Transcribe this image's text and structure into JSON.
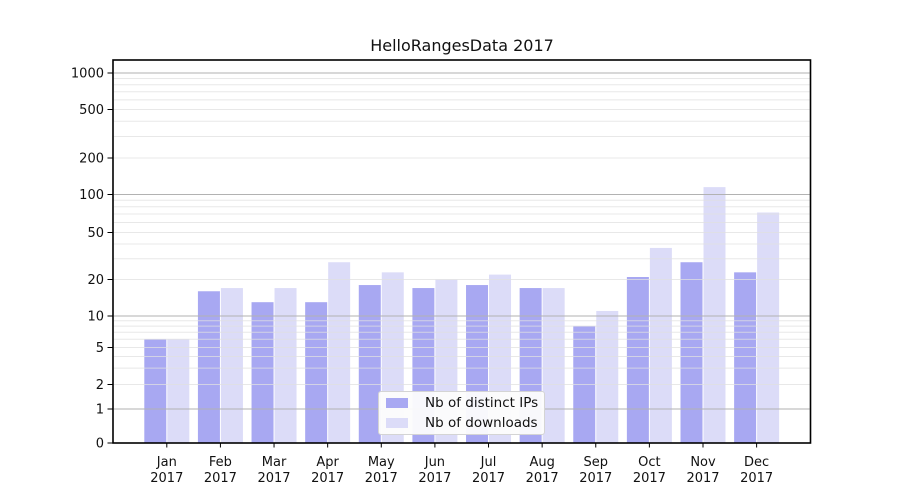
{
  "title": "HelloRangesData 2017",
  "chart_data": {
    "type": "bar",
    "title": "HelloRangesData 2017",
    "categories": [
      "Jan",
      "Feb",
      "Mar",
      "Apr",
      "May",
      "Jun",
      "Jul",
      "Aug",
      "Sep",
      "Oct",
      "Nov",
      "Dec"
    ],
    "category_year": "2017",
    "series": [
      {
        "name": "Nb of distinct IPs",
        "color": "#a8a8f2",
        "values": [
          6,
          16,
          13,
          13,
          18,
          17,
          18,
          17,
          8,
          21,
          28,
          23
        ]
      },
      {
        "name": "Nb of downloads",
        "color": "#dcdcf8",
        "values": [
          6,
          17,
          17,
          28,
          23,
          20,
          22,
          17,
          11,
          37,
          115,
          72
        ]
      }
    ],
    "y_axis": {
      "tick_values": [
        0,
        1,
        2,
        5,
        10,
        20,
        50,
        100,
        200,
        500,
        1000
      ],
      "major_gridline_values": [
        1,
        10,
        100,
        1000
      ],
      "range": [
        0,
        1000
      ],
      "scale": "log-compressed-near-zero"
    },
    "grid": true,
    "legend_position": "inside-bottom-center",
    "colors": {
      "major_gridline": "#b2b2b2",
      "minor_gridline": "#e0e0e0",
      "axis_border": "#000000",
      "text": "#111111"
    }
  }
}
